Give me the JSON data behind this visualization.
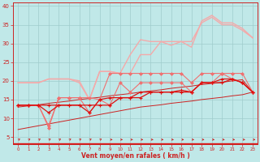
{
  "xlabel": "Vent moyen/en rafales ( km/h )",
  "bg_color": "#c0e8e8",
  "grid_color": "#a0cccc",
  "x": [
    0,
    1,
    2,
    3,
    4,
    5,
    6,
    7,
    8,
    9,
    10,
    11,
    12,
    13,
    14,
    15,
    16,
    17,
    18,
    19,
    20,
    21,
    22,
    23
  ],
  "line_lpink1": [
    19.5,
    19.5,
    19.5,
    20.5,
    20.5,
    20.5,
    20.0,
    15.0,
    22.5,
    22.5,
    22.0,
    27.0,
    31.0,
    30.5,
    30.5,
    29.5,
    30.5,
    29.0,
    36.0,
    37.5,
    35.5,
    35.5,
    34.0,
    31.5
  ],
  "line_lpink2": [
    19.5,
    19.5,
    19.5,
    20.5,
    20.5,
    20.5,
    19.5,
    15.0,
    22.5,
    22.5,
    22.0,
    22.0,
    27.0,
    27.0,
    30.5,
    30.5,
    30.5,
    30.5,
    35.5,
    37.0,
    35.0,
    35.0,
    33.5,
    31.5
  ],
  "line_mpink1": [
    13.5,
    13.5,
    13.5,
    7.5,
    15.5,
    15.5,
    15.5,
    15.5,
    15.0,
    22.0,
    22.0,
    22.0,
    22.0,
    22.0,
    22.0,
    22.0,
    22.0,
    19.5,
    22.0,
    22.0,
    22.0,
    22.0,
    22.0,
    17.0
  ],
  "line_mpink2": [
    13.5,
    13.5,
    13.5,
    8.0,
    15.5,
    15.5,
    15.5,
    11.5,
    15.0,
    13.5,
    19.5,
    17.0,
    19.5,
    19.5,
    19.5,
    19.5,
    19.5,
    17.0,
    19.5,
    19.5,
    22.0,
    20.5,
    19.5,
    17.0
  ],
  "line_dred1": [
    13.5,
    13.5,
    13.5,
    11.5,
    13.5,
    13.5,
    13.5,
    11.5,
    15.0,
    15.5,
    15.5,
    15.5,
    17.0,
    17.0,
    17.0,
    17.0,
    17.5,
    17.0,
    19.5,
    19.5,
    19.5,
    20.5,
    19.5,
    17.0
  ],
  "line_dred2": [
    13.5,
    13.5,
    13.5,
    13.5,
    13.5,
    13.5,
    13.5,
    13.5,
    13.5,
    13.5,
    15.5,
    15.5,
    15.5,
    17.0,
    17.0,
    17.0,
    17.0,
    17.0,
    19.5,
    19.5,
    20.5,
    20.5,
    19.5,
    17.0
  ],
  "line_linear_lo": [
    7.0,
    7.5,
    8.0,
    8.5,
    9.0,
    9.5,
    10.0,
    10.5,
    11.0,
    11.5,
    12.0,
    12.5,
    13.0,
    13.3,
    13.6,
    14.0,
    14.3,
    14.6,
    15.0,
    15.3,
    15.6,
    16.0,
    16.3,
    17.0
  ],
  "line_linear_hi": [
    13.0,
    13.3,
    13.6,
    14.0,
    14.3,
    14.6,
    15.0,
    15.3,
    15.6,
    16.0,
    16.3,
    16.6,
    17.0,
    17.3,
    17.6,
    18.0,
    18.3,
    18.6,
    19.0,
    19.3,
    19.6,
    20.0,
    20.3,
    17.0
  ],
  "color_lpink": "#f4aaaa",
  "color_mpink": "#f07070",
  "color_dred": "#dd1111",
  "color_linear": "#cc2222",
  "color_arrow": "#cc2222",
  "axis_color": "#cc2222",
  "tick_color": "#cc2222",
  "label_color": "#cc2222",
  "ylim": [
    3,
    41
  ],
  "yticks": [
    5,
    10,
    15,
    20,
    25,
    30,
    35,
    40
  ]
}
